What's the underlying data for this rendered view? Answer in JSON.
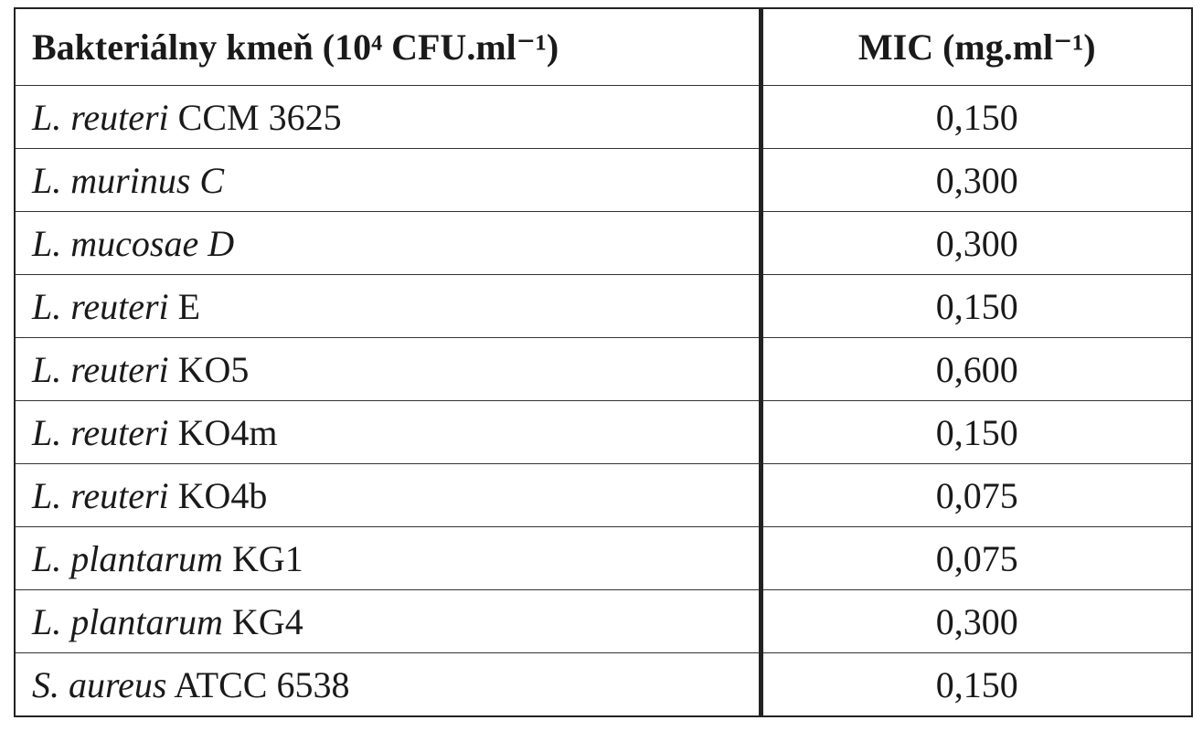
{
  "table": {
    "header": [
      "Bakteriálny kmeň (10⁴ CFU.ml⁻¹)",
      "MIC (mg.ml⁻¹)"
    ],
    "rows": [
      {
        "species": "L. reuteri",
        "strain": "CCM 3625",
        "mic": "0,150"
      },
      {
        "species": "L. murinus C",
        "mic": "0,300"
      },
      {
        "species": "L. mucosae D",
        "mic": "0,300"
      },
      {
        "species": "L. reuteri",
        "strain": "E",
        "mic": "0,150"
      },
      {
        "species": "L. reuteri",
        "strain": "KO5",
        "mic": "0,600"
      },
      {
        "species": "L. reuteri",
        "strain": "KO4m",
        "mic": "0,150"
      },
      {
        "species": "L. reuteri",
        "strain": "KO4b",
        "mic": "0,075"
      },
      {
        "species": "L. plantarum",
        "strain": "KG1",
        "mic": "0,075"
      },
      {
        "species": "L. plantarum",
        "strain": "KG4",
        "mic": "0,300"
      },
      {
        "species": "S. aureus",
        "strain": "ATCC 6538",
        "mic": "0,150"
      }
    ]
  }
}
